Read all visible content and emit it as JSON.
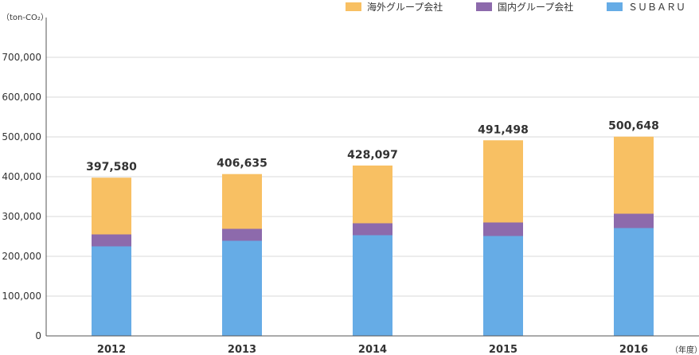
{
  "chart_data": {
    "type": "bar",
    "stacked": true,
    "unit_label": "（ton-CO₂）",
    "x_unit_label": "（年度）",
    "categories": [
      "2012",
      "2013",
      "2014",
      "2015",
      "2016"
    ],
    "totals": [
      "397,580",
      "406,635",
      "428,097",
      "491,498",
      "500,648"
    ],
    "series": [
      {
        "name": "ＳＵＢＡＲＵ",
        "color": "#66ace6",
        "values": [
          225000,
          239000,
          253000,
          251000,
          271000
        ]
      },
      {
        "name": "国内グループ会社",
        "color": "#8d6aac",
        "values": [
          30000,
          30000,
          30000,
          34000,
          36000
        ]
      },
      {
        "name": "海外グループ会社",
        "color": "#f8c063",
        "values": [
          142580,
          137635,
          145097,
          206498,
          193648
        ]
      }
    ],
    "legend_order": [
      2,
      1,
      0
    ],
    "legend_position": "top-right",
    "ylim": [
      0,
      700000
    ],
    "yticks": [
      0,
      100000,
      200000,
      300000,
      400000,
      500000,
      600000,
      700000
    ],
    "ytick_labels": [
      "0",
      "100,000",
      "200,000",
      "300,000",
      "400,000",
      "500,000",
      "600,000",
      "700,000"
    ],
    "grid": true
  }
}
